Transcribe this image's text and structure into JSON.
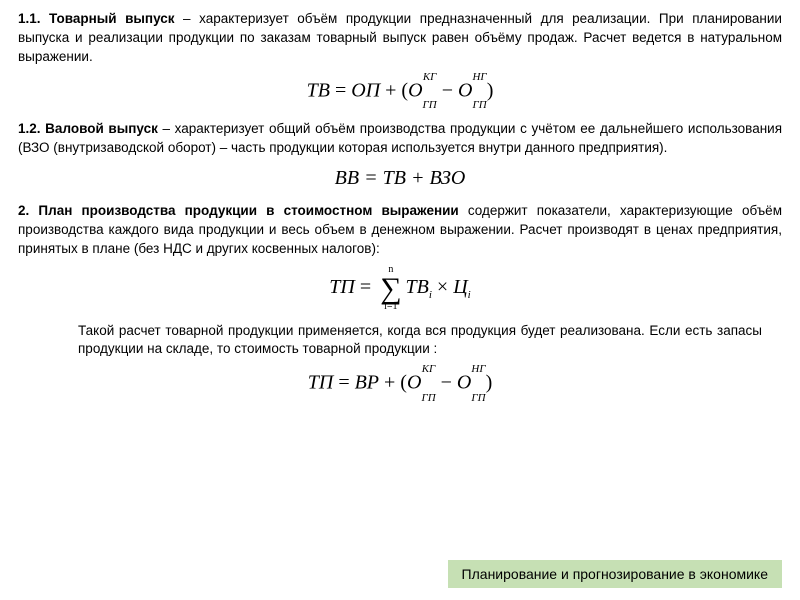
{
  "section1_1": {
    "heading": "1.1. Товарный выпуск",
    "body": " – характеризует объём продукции предназначенный для реализации. При планировании выпуска и реализации продукции по заказам товарный выпуск равен объёму продаж. Расчет ведется в натуральном выражении."
  },
  "formula1": {
    "lhs": "ТВ",
    "eq": " = ",
    "r1": "ОП",
    "plus": " + (",
    "o1": "О",
    "o1_sup": "КГ",
    "o1_sub": "ГП",
    "minus": " − ",
    "o2": "О",
    "o2_sup": "НГ",
    "o2_sub": "ГП",
    "close": ")"
  },
  "section1_2": {
    "heading": "1.2. Валовой выпуск",
    "body": " – характеризует общий объём производства продукции с учётом ее дальнейшего использования (ВЗО (внутризаводской оборот) – часть продукции которая используется внутри данного предприятия)."
  },
  "formula2": {
    "text": "ВВ = ТВ + ВЗО"
  },
  "section2": {
    "heading": "2. План производства продукции в стоимостном выражении",
    "body": " содержит показатели, характеризующие объём производства каждого вида продукции и весь объем в денежном выражении. Расчет производят в ценах предприятия, принятых в плане (без НДС и других косвенных налогов):"
  },
  "formula3": {
    "lhs": "ТП",
    "eq": " = ",
    "sum_top": "n",
    "sum_bot": "i=1",
    "tv": "ТВ",
    "tv_sub": "i",
    "times": " × ",
    "c": "Ц",
    "c_sub": "i"
  },
  "note": {
    "body": "Такой расчет товарной продукции применяется, когда вся продукция будет реализована. Если есть запасы продукции на складе, то стоимость товарной продукции :"
  },
  "formula4": {
    "lhs": "ТП",
    "eq": " = ",
    "r1": "ВР",
    "plus": " + (",
    "o1": "О",
    "o1_sup": "КГ",
    "o1_sub": "ГП",
    "minus": " − ",
    "o2": "О",
    "o2_sup": "НГ",
    "o2_sub": "ГП",
    "close": ")"
  },
  "footer": "Планирование и прогнозирование в экономике",
  "colors": {
    "footer_bg": "#c6e0b4",
    "text": "#000000",
    "background": "#ffffff"
  }
}
